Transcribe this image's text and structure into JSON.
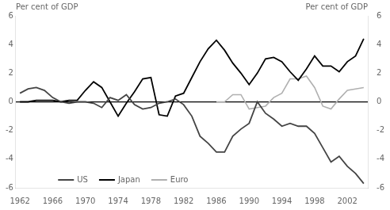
{
  "chart_data": {
    "type": "line",
    "x": [
      1962,
      1963,
      1964,
      1965,
      1966,
      1967,
      1968,
      1969,
      1970,
      1971,
      1972,
      1973,
      1974,
      1975,
      1976,
      1977,
      1978,
      1979,
      1980,
      1981,
      1982,
      1983,
      1984,
      1985,
      1986,
      1987,
      1988,
      1989,
      1990,
      1991,
      1992,
      1993,
      1994,
      1995,
      1996,
      1997,
      1998,
      1999,
      2000,
      2001,
      2002,
      2003,
      2004
    ],
    "series": [
      {
        "name": "US",
        "color": "#444444",
        "values": [
          0.6,
          0.9,
          1.0,
          0.8,
          0.3,
          0.0,
          -0.1,
          0.0,
          0.0,
          -0.1,
          -0.4,
          0.3,
          0.1,
          0.5,
          -0.2,
          -0.5,
          -0.4,
          -0.1,
          0.0,
          0.2,
          -0.2,
          -1.0,
          -2.4,
          -2.9,
          -3.5,
          -3.5,
          -2.4,
          -1.9,
          -1.5,
          0.0,
          -0.8,
          -1.2,
          -1.7,
          -1.5,
          -1.7,
          -1.7,
          -2.2,
          -3.2,
          -4.2,
          -3.8,
          -4.5,
          -5.0,
          -5.7
        ]
      },
      {
        "name": "Japan",
        "color": "#000000",
        "values": [
          0.0,
          0.0,
          0.1,
          0.1,
          0.1,
          0.0,
          0.1,
          0.1,
          0.8,
          1.4,
          1.0,
          0.0,
          -1.0,
          -0.1,
          0.7,
          1.6,
          1.7,
          -0.9,
          -1.0,
          0.4,
          0.6,
          1.7,
          2.8,
          3.7,
          4.3,
          3.6,
          2.7,
          2.0,
          1.2,
          2.0,
          3.0,
          3.1,
          2.8,
          2.1,
          1.5,
          2.3,
          3.2,
          2.5,
          2.5,
          2.1,
          2.8,
          3.2,
          4.4
        ]
      },
      {
        "name": "Euro",
        "color": "#b0b0b0",
        "values": [
          null,
          null,
          null,
          null,
          null,
          null,
          null,
          null,
          null,
          null,
          null,
          null,
          null,
          null,
          null,
          null,
          null,
          null,
          null,
          null,
          null,
          null,
          null,
          null,
          0.0,
          0.0,
          0.5,
          0.5,
          -0.5,
          -0.4,
          -0.3,
          0.3,
          0.6,
          1.6,
          1.6,
          1.8,
          1.0,
          -0.3,
          -0.5,
          0.2,
          0.8,
          0.9,
          1.0
        ]
      }
    ],
    "xlim": [
      1961.5,
      2004.5
    ],
    "xticks": [
      1962,
      1966,
      1970,
      1974,
      1978,
      1982,
      1986,
      1990,
      1994,
      1998,
      2002
    ],
    "ylim": [
      -6,
      6
    ],
    "yticks": [
      -6,
      -4,
      -2,
      0,
      2,
      4,
      6
    ],
    "y2lim": [
      -6,
      6
    ],
    "y2ticks": [
      -6,
      -4,
      -2,
      0,
      2,
      4,
      6
    ],
    "ylabel": "Per cent of GDP",
    "y2label": "Per cent of GDP",
    "legend": "lower left",
    "grid": false
  }
}
